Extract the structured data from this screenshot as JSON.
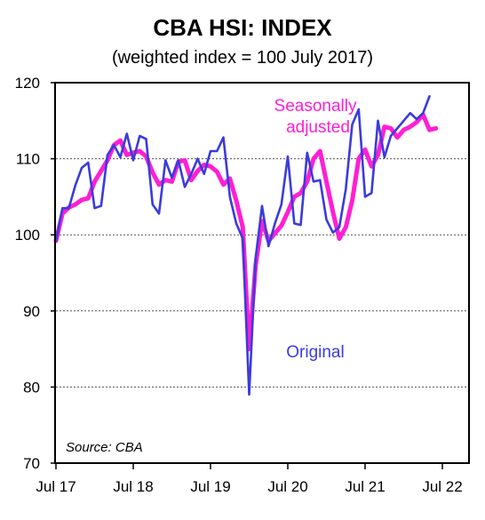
{
  "chart_data": {
    "type": "line",
    "title": "CBA HSI: INDEX",
    "subtitle": "(weighted index = 100 July 2017)",
    "source": "Source: CBA",
    "ylim": [
      70,
      120
    ],
    "y_ticks": [
      70,
      80,
      90,
      100,
      110,
      120
    ],
    "x_start": "2017-07",
    "x_end": "2022-11",
    "x_tick_labels": [
      {
        "label": "Jul 17",
        "month": "2017-07"
      },
      {
        "label": "Jul 18",
        "month": "2018-07"
      },
      {
        "label": "Jul 19",
        "month": "2019-07"
      },
      {
        "label": "Jul 20",
        "month": "2020-07"
      },
      {
        "label": "Jul 21",
        "month": "2021-07"
      },
      {
        "label": "Jul 22",
        "month": "2022-07"
      }
    ],
    "grid": "horizontal dotted",
    "annotations": [
      {
        "text": "Seasonally",
        "series": "Seasonally adjusted",
        "color": "#ff1fd4"
      },
      {
        "text": "adjusted",
        "series": "Seasonally adjusted",
        "color": "#ff1fd4"
      },
      {
        "text": "Original",
        "series": "Original",
        "color": "#3b3bdc"
      }
    ],
    "series": [
      {
        "name": "Seasonally adjusted",
        "color": "#ff1fd4",
        "start": "2017-07",
        "values": [
          99.2,
          102.8,
          103.6,
          104.0,
          104.6,
          104.8,
          107.0,
          108.4,
          109.8,
          111.8,
          112.4,
          110.5,
          110.8,
          111.0,
          110.3,
          108.2,
          106.6,
          107.2,
          107.0,
          109.6,
          109.8,
          107.2,
          108.4,
          109.2,
          109.0,
          108.3,
          106.6,
          107.4,
          104.5,
          101.0,
          85.0,
          96.0,
          101.8,
          99.2,
          100.2,
          101.2,
          103.0,
          105.0,
          105.5,
          107.0,
          110.0,
          111.0,
          107.0,
          103.0,
          99.5,
          101.0,
          104.5,
          110.0,
          111.2,
          109.0,
          110.5,
          114.2,
          114.0,
          112.8,
          113.8,
          114.2,
          114.8,
          115.8,
          113.8,
          114.0
        ]
      },
      {
        "name": "Original",
        "color": "#3b3bdc",
        "start": "2017-07",
        "values": [
          99.2,
          103.5,
          103.5,
          106.5,
          108.8,
          109.5,
          103.5,
          103.8,
          110.5,
          111.8,
          110.2,
          113.3,
          109.8,
          113.0,
          112.6,
          104.0,
          102.8,
          109.8,
          107.5,
          109.8,
          106.3,
          108.0,
          110.0,
          108.0,
          111.0,
          111.0,
          112.8,
          105.0,
          101.5,
          99.5,
          79.0,
          97.0,
          103.8,
          98.5,
          101.5,
          104.0,
          110.3,
          101.5,
          101.3,
          110.8,
          107.0,
          107.2,
          102.0,
          100.3,
          101.0,
          106.0,
          114.5,
          116.5,
          105.0,
          105.5,
          115.0,
          110.2,
          113.0,
          114.0,
          115.0,
          116.0,
          115.2,
          116.0,
          118.2
        ]
      }
    ]
  }
}
